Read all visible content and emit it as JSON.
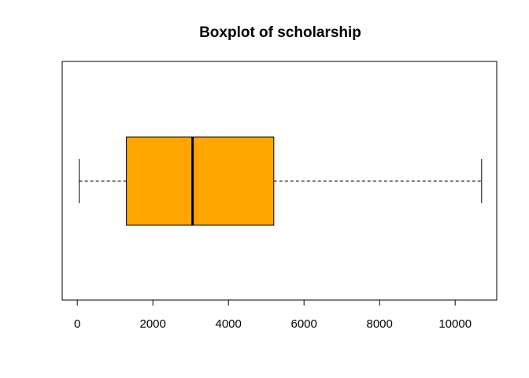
{
  "chart_data": {
    "type": "boxplot",
    "orientation": "horizontal",
    "title": "Boxplot of scholarship",
    "xlabel": "",
    "ylabel": "",
    "xlim": [
      -400,
      11100
    ],
    "xticks": [
      0,
      2000,
      4000,
      6000,
      8000,
      10000
    ],
    "xtick_labels": [
      "0",
      "2000",
      "4000",
      "6000",
      "8000",
      "10000"
    ],
    "grid": false,
    "series": [
      {
        "whisker_low": 50,
        "q1": 1300,
        "median": 3050,
        "q3": 5200,
        "whisker_high": 10700
      }
    ],
    "colors": {
      "box_fill": "#FFA500",
      "stroke": "#000000"
    }
  }
}
